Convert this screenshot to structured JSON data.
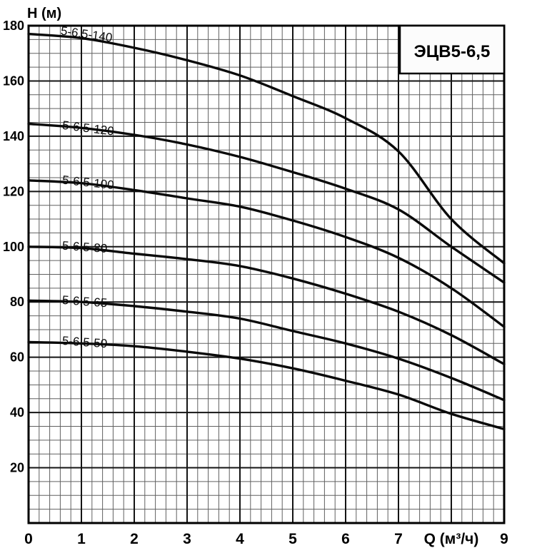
{
  "chart_data": {
    "type": "line",
    "title": "ЭЦВ5-6,5",
    "xlabel": "Q (м³/ч)",
    "ylabel": "H (м)",
    "xlim": [
      0,
      9
    ],
    "ylim": [
      0,
      180
    ],
    "x_major_step": 1,
    "x_minor_step": 0.2,
    "y_major_step": 20,
    "y_minor_step": 5,
    "grid": true,
    "legend": "inline-curve-labels",
    "x": [
      0,
      1,
      2,
      3,
      4,
      5,
      6,
      7,
      8,
      9
    ],
    "x_ticks": [
      {
        "value": 0,
        "label": "0"
      },
      {
        "value": 1,
        "label": "1"
      },
      {
        "value": 2,
        "label": "2"
      },
      {
        "value": 3,
        "label": "3"
      },
      {
        "value": 4,
        "label": "4"
      },
      {
        "value": 5,
        "label": "5"
      },
      {
        "value": 6,
        "label": "6"
      },
      {
        "value": 7,
        "label": "7"
      },
      {
        "value": 9,
        "label": "9"
      }
    ],
    "y_ticks": [
      {
        "value": 20,
        "label": "20"
      },
      {
        "value": 40,
        "label": "40"
      },
      {
        "value": 60,
        "label": "60"
      },
      {
        "value": 80,
        "label": "80"
      },
      {
        "value": 100,
        "label": "100"
      },
      {
        "value": 120,
        "label": "120"
      },
      {
        "value": 140,
        "label": "140"
      },
      {
        "value": 160,
        "label": "160"
      },
      {
        "value": 180,
        "label": "180"
      }
    ],
    "series": [
      {
        "name": "5-6,5-140",
        "values": [
          177,
          175.5,
          172,
          167.5,
          162,
          154.5,
          146.5,
          134.5,
          110,
          94
        ],
        "label_pos": {
          "q": 0.6,
          "h": 176.8,
          "angle": 8
        }
      },
      {
        "name": "5-6,5-120",
        "values": [
          144.5,
          143,
          140.5,
          137,
          132.5,
          127,
          121,
          113.5,
          100,
          87
        ],
        "label_pos": {
          "q": 0.63,
          "h": 142.6,
          "angle": 7
        }
      },
      {
        "name": "5-6,5-100",
        "values": [
          124,
          123,
          120.5,
          117.5,
          114.5,
          109.5,
          103.5,
          96,
          85,
          71
        ],
        "label_pos": {
          "q": 0.63,
          "h": 122.8,
          "angle": 6
        }
      },
      {
        "name": "5-6,5-80",
        "values": [
          100,
          99.5,
          97.5,
          95.5,
          93,
          88.5,
          83,
          76.5,
          68,
          57.5
        ],
        "label_pos": {
          "q": 0.63,
          "h": 99.0,
          "angle": 4
        }
      },
      {
        "name": "5-6,5-65",
        "values": [
          80.5,
          80,
          78.5,
          76.5,
          74,
          69.5,
          65,
          59.5,
          52.5,
          44.5
        ],
        "label_pos": {
          "q": 0.63,
          "h": 79.3,
          "angle": 4
        }
      },
      {
        "name": "5-6,5-50",
        "values": [
          65.5,
          65,
          64,
          62,
          59.5,
          56,
          51.5,
          46.5,
          39.5,
          34
        ],
        "label_pos": {
          "q": 0.63,
          "h": 64.6,
          "angle": 4
        }
      }
    ]
  },
  "colors": {
    "background": "#ffffff",
    "curve": "#0a0a0a",
    "grid_minor": "#606060",
    "grid_major": "#141414",
    "border": "#000000",
    "box_fill": "#fcfcfc",
    "text": "#000000"
  }
}
